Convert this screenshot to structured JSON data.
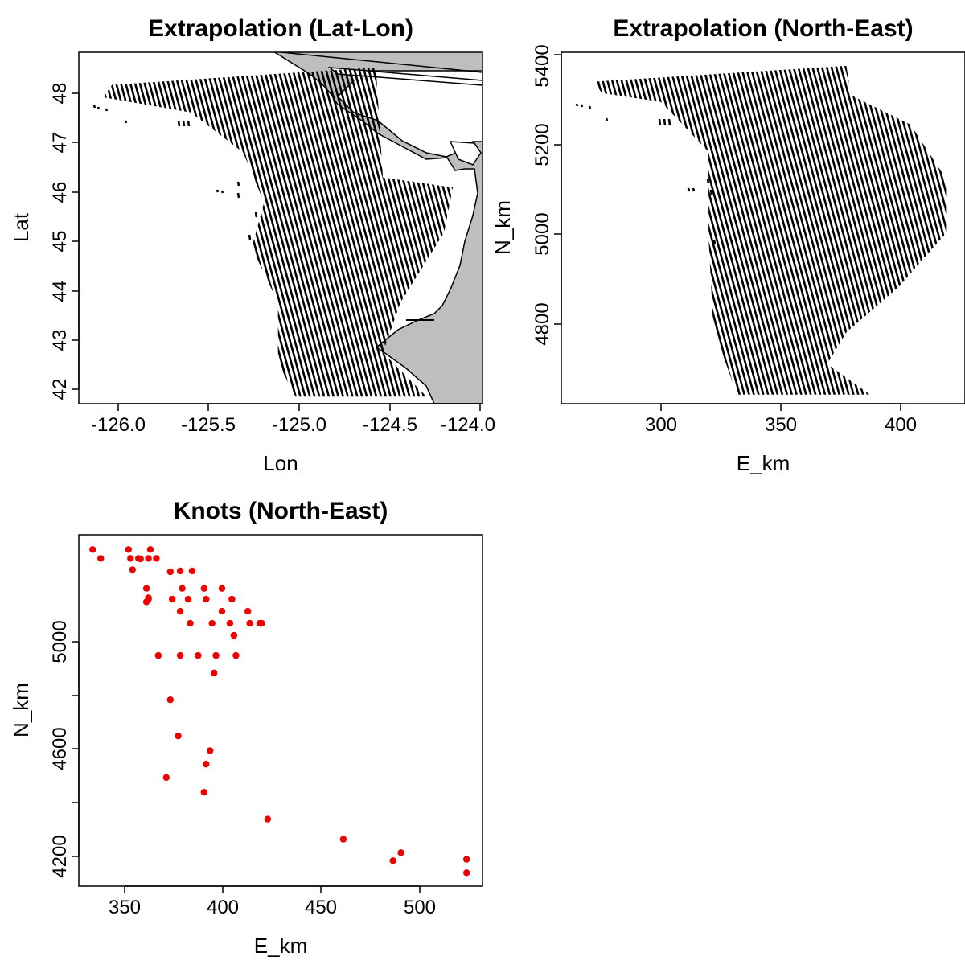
{
  "chart_data": [
    {
      "type": "scatter",
      "title": "Extrapolation (Lat-Lon)",
      "xlabel": "Lon",
      "ylabel": "Lat",
      "xlim": [
        -126.24,
        -123.93
      ],
      "ylim": [
        41.78,
        48.8
      ],
      "xticks": [
        -126.0,
        -125.5,
        -125.0,
        -124.5,
        -124.0
      ],
      "xtick_labels": [
        "-126.0",
        "-125.5",
        "-125.0",
        "-124.5",
        "-124.0"
      ],
      "yticks": [
        42,
        43,
        44,
        45,
        46,
        47,
        48
      ],
      "ytick_labels": [
        "42",
        "43",
        "44",
        "45",
        "46",
        "47",
        "48"
      ],
      "grid": false,
      "land_color": "#bebebe",
      "point_color": "#000000"
    },
    {
      "type": "scatter",
      "title": "Extrapolation (North-East)",
      "xlabel": "E_km",
      "ylabel": "N_km",
      "xlim": [
        258,
        428
      ],
      "ylim": [
        4632,
        5410
      ],
      "xticks": [
        300,
        350,
        400
      ],
      "xtick_labels": [
        "300",
        "350",
        "400"
      ],
      "yticks": [
        4800,
        5000,
        5200,
        5400
      ],
      "ytick_labels": [
        "4800",
        "5000",
        "5200",
        "5400"
      ],
      "grid": false,
      "point_color": "#000000"
    },
    {
      "type": "scatter",
      "title": "Knots (North-East)",
      "xlabel": "E_km",
      "ylabel": "N_km",
      "xlim": [
        328,
        531
      ],
      "ylim": [
        4090,
        5400
      ],
      "xticks": [
        350,
        400,
        450,
        500
      ],
      "xtick_labels": [
        "350",
        "400",
        "450",
        "500"
      ],
      "yticks": [
        4200,
        4600,
        5000
      ],
      "ytick_labels": [
        "4200",
        "4600",
        "5000"
      ],
      "grid": false,
      "point_color": "#ee0000",
      "x": [
        335,
        339,
        353,
        354,
        355,
        358,
        359,
        363,
        364,
        367,
        362,
        363,
        363,
        374,
        379,
        385,
        375,
        380,
        383,
        391,
        392,
        400,
        405,
        379,
        384,
        395,
        400,
        404,
        413,
        414,
        406,
        419,
        420,
        362,
        368,
        379,
        388,
        397,
        407,
        396,
        374,
        378,
        394,
        392,
        372,
        391,
        423,
        461,
        486,
        490,
        523,
        523
      ],
      "y": [
        5345,
        5312,
        5345,
        5312,
        5270,
        5312,
        5310,
        5312,
        5345,
        5312,
        5200,
        5160,
        5165,
        5262,
        5265,
        5265,
        5160,
        5200,
        5160,
        5200,
        5160,
        5200,
        5160,
        5115,
        5070,
        5070,
        5115,
        5070,
        5115,
        5070,
        5025,
        5070,
        5070,
        5150,
        4950,
        4950,
        4950,
        4950,
        4950,
        4885,
        4785,
        4650,
        4595,
        4545,
        4495,
        4440,
        4340,
        4265,
        4185,
        4215,
        4190,
        4140
      ]
    }
  ],
  "hatch_regions": [
    [
      [
        -126.05,
        48.15
      ],
      [
        -124.54,
        48.5
      ],
      [
        -124.5,
        46.3
      ],
      [
        -124.1,
        46.1
      ],
      [
        -124.15,
        45.2
      ],
      [
        -124.4,
        43.8
      ],
      [
        -124.5,
        42.8
      ],
      [
        -124.25,
        41.92
      ],
      [
        -125.0,
        41.92
      ],
      [
        -125.1,
        42.6
      ],
      [
        -125.1,
        43.8
      ],
      [
        -125.25,
        44.9
      ],
      [
        -125.18,
        45.8
      ],
      [
        -125.3,
        46.8
      ],
      [
        -125.6,
        47.6
      ],
      [
        -126.1,
        47.9
      ]
    ],
    [
      [
        272,
        5345
      ],
      [
        378,
        5380
      ],
      [
        380,
        5315
      ],
      [
        405,
        5250
      ],
      [
        420,
        5130
      ],
      [
        420,
        5010
      ],
      [
        400,
        4890
      ],
      [
        378,
        4790
      ],
      [
        370,
        4720
      ],
      [
        388,
        4652
      ],
      [
        332,
        4652
      ],
      [
        322,
        4800
      ],
      [
        320,
        5000
      ],
      [
        320,
        5190
      ],
      [
        300,
        5300
      ],
      [
        275,
        5320
      ]
    ]
  ]
}
